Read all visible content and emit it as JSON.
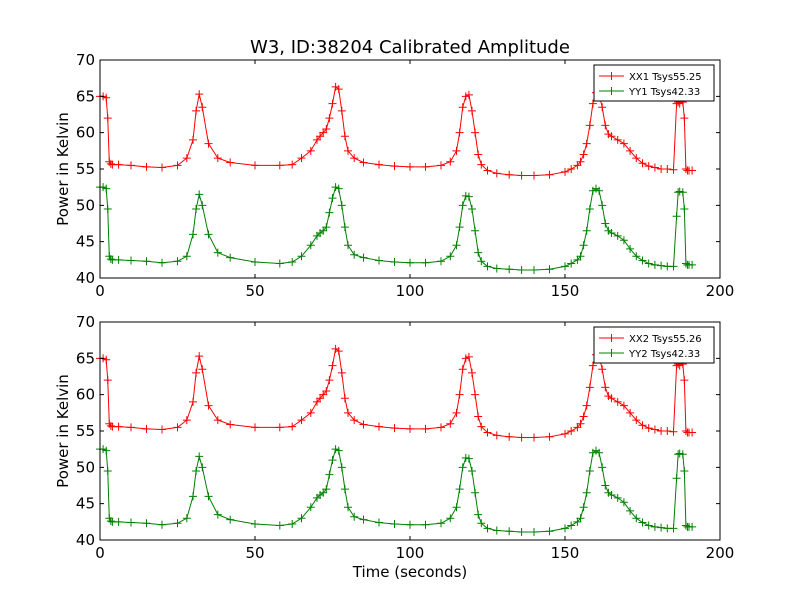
{
  "figure": {
    "title": "W3, ID:38204 Calibrated Amplitude",
    "xlabel": "Time (seconds)"
  },
  "chart_data": [
    {
      "type": "line",
      "ylabel": "Power in Kelvin",
      "xlim": [
        0,
        200
      ],
      "ylim": [
        40,
        70
      ],
      "xticks": [
        0,
        50,
        100,
        150,
        200
      ],
      "yticks": [
        40,
        45,
        50,
        55,
        60,
        65,
        70
      ],
      "grid": false,
      "legend": "top-right",
      "series": [
        {
          "name": "XX1 Tsys55.25",
          "color": "#ff0000",
          "marker": "+",
          "x": [
            0,
            1,
            2,
            2.5,
            3,
            3.5,
            4,
            6,
            10,
            15,
            20,
            25,
            28,
            30,
            31,
            32,
            33,
            35,
            38,
            42,
            50,
            58,
            62,
            65,
            68,
            70,
            71,
            72,
            73,
            74,
            75,
            76,
            77,
            78,
            79,
            80,
            82,
            85,
            90,
            95,
            100,
            105,
            110,
            113,
            115,
            116,
            117,
            118,
            119,
            120,
            121,
            122,
            123,
            125,
            128,
            132,
            136,
            140,
            145,
            150,
            152,
            154,
            155,
            156,
            157,
            158,
            159,
            160,
            161,
            162,
            163,
            164,
            165,
            167,
            169,
            171,
            173,
            175,
            177,
            179,
            181,
            183,
            185,
            186,
            186.5,
            187,
            188,
            188.5,
            189,
            189.5,
            190,
            191
          ],
          "y": [
            65,
            65,
            64.8,
            62,
            56,
            55.7,
            55.6,
            55.6,
            55.5,
            55.3,
            55.2,
            55.5,
            56.5,
            59,
            63,
            65.3,
            63.5,
            58.5,
            56.5,
            55.9,
            55.5,
            55.5,
            55.6,
            56.5,
            57.5,
            59,
            59.5,
            60,
            60.5,
            62,
            64,
            66.3,
            66,
            63,
            59.5,
            57.5,
            56.5,
            55.9,
            55.6,
            55.4,
            55.3,
            55.3,
            55.5,
            56,
            57.5,
            60,
            63.5,
            65,
            65.2,
            63,
            60,
            57,
            55.6,
            54.8,
            54.4,
            54.2,
            54.1,
            54.1,
            54.2,
            54.6,
            55,
            55.5,
            56,
            57,
            58.5,
            61,
            64,
            65.5,
            65.3,
            63.5,
            61,
            59.8,
            59.5,
            59,
            58.5,
            57.5,
            56.5,
            55.8,
            55.4,
            55.2,
            55,
            55,
            54.9,
            64,
            64.2,
            64,
            64.2,
            62,
            55,
            54.8,
            54.8,
            54.8
          ]
        },
        {
          "name": "YY1 Tsys42.33",
          "color": "#008000",
          "marker": "+",
          "x": [
            0,
            1,
            2,
            2.5,
            3,
            3.5,
            4,
            6,
            10,
            15,
            20,
            25,
            28,
            30,
            31,
            32,
            33,
            35,
            38,
            42,
            50,
            58,
            62,
            65,
            68,
            70,
            71,
            72,
            73,
            74,
            75,
            76,
            77,
            78,
            79,
            80,
            82,
            85,
            90,
            95,
            100,
            105,
            110,
            113,
            115,
            116,
            117,
            118,
            119,
            120,
            121,
            122,
            123,
            125,
            128,
            132,
            136,
            140,
            145,
            150,
            152,
            154,
            155,
            156,
            157,
            158,
            159,
            160,
            161,
            162,
            163,
            164,
            165,
            167,
            169,
            171,
            173,
            175,
            177,
            179,
            181,
            183,
            185,
            186,
            186.5,
            187,
            188,
            188.5,
            189,
            189.5,
            190,
            191
          ],
          "y": [
            52.5,
            52.5,
            52.3,
            49.5,
            43,
            42.6,
            42.5,
            42.5,
            42.4,
            42.3,
            42.1,
            42.3,
            43,
            46,
            49.5,
            51.5,
            50,
            46,
            43.5,
            42.8,
            42.2,
            42,
            42.2,
            43,
            44.5,
            45.8,
            46.2,
            46.5,
            47,
            49,
            51,
            52.5,
            52.3,
            50,
            47,
            44.5,
            43.2,
            42.8,
            42.4,
            42.2,
            42.1,
            42.1,
            42.3,
            43,
            44.5,
            47,
            50,
            51.3,
            51.2,
            49.5,
            46.5,
            43.5,
            42.3,
            41.6,
            41.3,
            41.2,
            41.1,
            41.1,
            41.2,
            41.6,
            42,
            42.5,
            43,
            44.5,
            46.5,
            49.5,
            52,
            52.3,
            52,
            50,
            47.5,
            46.5,
            46.2,
            45.8,
            45.2,
            44,
            43,
            42.4,
            42,
            41.8,
            41.7,
            41.6,
            41.6,
            48.5,
            51.8,
            51.9,
            51.8,
            49.5,
            42,
            41.8,
            41.8,
            41.8
          ]
        }
      ]
    },
    {
      "type": "line",
      "ylabel": "Power in Kelvin",
      "xlabel": "Time (seconds)",
      "xlim": [
        0,
        200
      ],
      "ylim": [
        40,
        70
      ],
      "xticks": [
        0,
        50,
        100,
        150,
        200
      ],
      "yticks": [
        40,
        45,
        50,
        55,
        60,
        65,
        70
      ],
      "grid": false,
      "legend": "top-right",
      "series": [
        {
          "name": "XX2 Tsys55.26",
          "color": "#ff0000",
          "marker": "+",
          "x": [
            0,
            1,
            2,
            2.5,
            3,
            3.5,
            4,
            6,
            10,
            15,
            20,
            25,
            28,
            30,
            31,
            32,
            33,
            35,
            38,
            42,
            50,
            58,
            62,
            65,
            68,
            70,
            71,
            72,
            73,
            74,
            75,
            76,
            77,
            78,
            79,
            80,
            82,
            85,
            90,
            95,
            100,
            105,
            110,
            113,
            115,
            116,
            117,
            118,
            119,
            120,
            121,
            122,
            123,
            125,
            128,
            132,
            136,
            140,
            145,
            150,
            152,
            154,
            155,
            156,
            157,
            158,
            159,
            160,
            161,
            162,
            163,
            164,
            165,
            167,
            169,
            171,
            173,
            175,
            177,
            179,
            181,
            183,
            185,
            186,
            186.5,
            187,
            188,
            188.5,
            189,
            189.5,
            190,
            191
          ],
          "y": [
            65,
            65,
            64.8,
            62,
            56,
            55.7,
            55.6,
            55.6,
            55.5,
            55.3,
            55.2,
            55.5,
            56.5,
            59,
            63,
            65.3,
            63.5,
            58.5,
            56.5,
            55.9,
            55.5,
            55.5,
            55.6,
            56.5,
            57.5,
            59,
            59.5,
            60,
            60.5,
            62,
            64,
            66.3,
            66,
            63,
            59.5,
            57.5,
            56.5,
            55.9,
            55.6,
            55.4,
            55.3,
            55.3,
            55.5,
            56,
            57.5,
            60,
            63.5,
            65,
            65.2,
            63,
            60,
            57,
            55.6,
            54.8,
            54.4,
            54.2,
            54.1,
            54.1,
            54.2,
            54.6,
            55,
            55.5,
            56,
            57,
            58.5,
            61,
            64,
            65.5,
            65.3,
            63.5,
            61,
            59.8,
            59.5,
            59,
            58.5,
            57.5,
            56.5,
            55.8,
            55.4,
            55.2,
            55,
            55,
            54.9,
            64,
            64.2,
            64,
            64.2,
            62,
            55,
            54.8,
            54.8,
            54.8
          ]
        },
        {
          "name": "YY2 Tsys42.33",
          "color": "#008000",
          "marker": "+",
          "x": [
            0,
            1,
            2,
            2.5,
            3,
            3.5,
            4,
            6,
            10,
            15,
            20,
            25,
            28,
            30,
            31,
            32,
            33,
            35,
            38,
            42,
            50,
            58,
            62,
            65,
            68,
            70,
            71,
            72,
            73,
            74,
            75,
            76,
            77,
            78,
            79,
            80,
            82,
            85,
            90,
            95,
            100,
            105,
            110,
            113,
            115,
            116,
            117,
            118,
            119,
            120,
            121,
            122,
            123,
            125,
            128,
            132,
            136,
            140,
            145,
            150,
            152,
            154,
            155,
            156,
            157,
            158,
            159,
            160,
            161,
            162,
            163,
            164,
            165,
            167,
            169,
            171,
            173,
            175,
            177,
            179,
            181,
            183,
            185,
            186,
            186.5,
            187,
            188,
            188.5,
            189,
            189.5,
            190,
            191
          ],
          "y": [
            52.5,
            52.5,
            52.3,
            49.5,
            43,
            42.6,
            42.5,
            42.5,
            42.4,
            42.3,
            42.1,
            42.3,
            43,
            46,
            49.5,
            51.5,
            50,
            46,
            43.5,
            42.8,
            42.2,
            42,
            42.2,
            43,
            44.5,
            45.8,
            46.2,
            46.5,
            47,
            49,
            51,
            52.5,
            52.3,
            50,
            47,
            44.5,
            43.2,
            42.8,
            42.4,
            42.2,
            42.1,
            42.1,
            42.3,
            43,
            44.5,
            47,
            50,
            51.3,
            51.2,
            49.5,
            46.5,
            43.5,
            42.3,
            41.6,
            41.3,
            41.2,
            41.1,
            41.1,
            41.2,
            41.6,
            42,
            42.5,
            43,
            44.5,
            46.5,
            49.5,
            52,
            52.3,
            52,
            50,
            47.5,
            46.5,
            46.2,
            45.8,
            45.2,
            44,
            43,
            42.4,
            42,
            41.8,
            41.7,
            41.6,
            41.6,
            48.5,
            51.8,
            51.9,
            51.8,
            49.5,
            42,
            41.8,
            41.8,
            41.8
          ]
        }
      ]
    }
  ]
}
